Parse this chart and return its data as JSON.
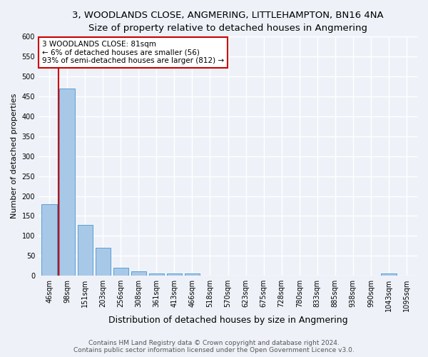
{
  "title": "3, WOODLANDS CLOSE, ANGMERING, LITTLEHAMPTON, BN16 4NA",
  "subtitle": "Size of property relative to detached houses in Angmering",
  "xlabel": "Distribution of detached houses by size in Angmering",
  "ylabel": "Number of detached properties",
  "bar_labels": [
    "46sqm",
    "98sqm",
    "151sqm",
    "203sqm",
    "256sqm",
    "308sqm",
    "361sqm",
    "413sqm",
    "466sqm",
    "518sqm",
    "570sqm",
    "623sqm",
    "675sqm",
    "728sqm",
    "780sqm",
    "833sqm",
    "885sqm",
    "938sqm",
    "990sqm",
    "1043sqm",
    "1095sqm"
  ],
  "bar_values": [
    180,
    470,
    128,
    70,
    20,
    12,
    6,
    5,
    5,
    0,
    0,
    0,
    0,
    0,
    0,
    0,
    0,
    0,
    0,
    6,
    0
  ],
  "bar_color": "#a8c8e8",
  "bar_edge_color": "#5a9fd4",
  "vline_x": 0.5,
  "vline_color": "#cc0000",
  "annotation_text": "3 WOODLANDS CLOSE: 81sqm\n← 6% of detached houses are smaller (56)\n93% of semi-detached houses are larger (812) →",
  "annotation_box_color": "#ffffff",
  "annotation_box_edge": "#cc0000",
  "ylim": [
    0,
    600
  ],
  "yticks": [
    0,
    50,
    100,
    150,
    200,
    250,
    300,
    350,
    400,
    450,
    500,
    550,
    600
  ],
  "footer_line1": "Contains HM Land Registry data © Crown copyright and database right 2024.",
  "footer_line2": "Contains public sector information licensed under the Open Government Licence v3.0.",
  "bg_color": "#eef2f8",
  "plot_bg_color": "#eef2f8",
  "grid_color": "#ffffff",
  "title_fontsize": 9.5,
  "xlabel_fontsize": 9,
  "ylabel_fontsize": 8,
  "tick_fontsize": 7,
  "annotation_fontsize": 7.5,
  "footer_fontsize": 6.5
}
